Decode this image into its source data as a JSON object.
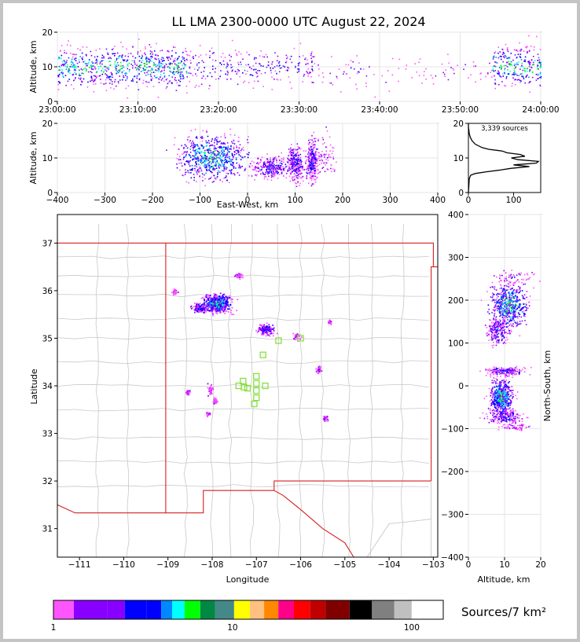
{
  "colors": {
    "frame": "#c4c4c4",
    "state_border": "#d62020",
    "county_lines": "#c8c8c8",
    "station_marker": "#88e040"
  },
  "colorbar": {
    "colors": [
      "#ff55ff",
      "#8800ff",
      "#8800ff",
      "#0000ff",
      "#0000ff",
      "#0088ff",
      "#00ffff",
      "#00ff00",
      "#008844",
      "#448888",
      "#ffff00",
      "#ffc080",
      "#ff8800",
      "#ff0088",
      "#ff0000",
      "#c00000",
      "#800000",
      "#000000",
      "#808080",
      "#c0c0c0",
      "#ffffff"
    ],
    "tick_labels": [
      "1",
      "10",
      "100"
    ],
    "label": "Sources/7 km²"
  },
  "chart_data": [
    {
      "type": "scatter",
      "panel": "altitude-vs-time",
      "title": "LL LMA 2300-0000 UTC August 22, 2024",
      "xlabel": "",
      "ylabel": "Altitude, km",
      "x_ticks": [
        "23:00:00",
        "23:10:00",
        "23:20:00",
        "23:30:00",
        "23:40:00",
        "23:50:00",
        "24:00:00"
      ],
      "xlim": [
        0,
        60
      ],
      "ylim": [
        0,
        20
      ],
      "y_ticks": [
        0,
        10,
        20
      ],
      "grid": true,
      "clusters": [
        {
          "t_start": 0,
          "t_end": 16,
          "alt_center": 10,
          "alt_spread": 3,
          "intensity": "high"
        },
        {
          "t_start": 16,
          "t_end": 25,
          "alt_center": 10,
          "alt_spread": 3,
          "intensity": "medium"
        },
        {
          "t_start": 25,
          "t_end": 32,
          "alt_center": 10,
          "alt_spread": 2.5,
          "intensity": "medium"
        },
        {
          "t_start": 32,
          "t_end": 44,
          "alt_center": 9,
          "alt_spread": 2.5,
          "intensity": "low"
        },
        {
          "t_start": 44,
          "t_end": 54,
          "alt_center": 9,
          "alt_spread": 2,
          "intensity": "low"
        },
        {
          "t_start": 54,
          "t_end": 60,
          "alt_center": 10,
          "alt_spread": 3,
          "intensity": "high"
        }
      ]
    },
    {
      "type": "scatter",
      "panel": "altitude-vs-east-west",
      "xlabel": "East-West, km",
      "ylabel": "Altitude, km",
      "xlim": [
        -400,
        400
      ],
      "ylim": [
        0,
        20
      ],
      "x_ticks": [
        -400,
        -300,
        -200,
        -100,
        0,
        100,
        200,
        300,
        400
      ],
      "y_ticks": [
        0,
        10,
        20
      ],
      "grid": true,
      "clusters": [
        {
          "x_center": -75,
          "x_spread": 35,
          "alt_center": 10.5,
          "alt_spread": 3,
          "intensity": "high"
        },
        {
          "x_center": 50,
          "x_spread": 20,
          "alt_center": 7.5,
          "alt_spread": 1.5,
          "intensity": "medium"
        },
        {
          "x_center": 100,
          "x_spread": 8,
          "alt_center": 8.5,
          "alt_spread": 2.5,
          "intensity": "medium"
        },
        {
          "x_center": 135,
          "x_spread": 6,
          "alt_center": 9,
          "alt_spread": 3,
          "intensity": "medium"
        },
        {
          "x_center": 160,
          "x_spread": 10,
          "alt_center": 11,
          "alt_spread": 3,
          "intensity": "low"
        }
      ]
    },
    {
      "type": "line",
      "panel": "altitude-histogram",
      "annotation": "3,339 sources",
      "xlim": [
        0,
        160
      ],
      "ylim": [
        0,
        20
      ],
      "x_ticks": [
        0,
        100
      ],
      "y_ticks": [
        0,
        10,
        20
      ],
      "series": [
        {
          "altitude": [
            0,
            2,
            4,
            5,
            5.5,
            6,
            6.5,
            7,
            7.5,
            8,
            8.5,
            9,
            9.5,
            10,
            10.5,
            11,
            11.5,
            12,
            12.5,
            13,
            14,
            15,
            16,
            17,
            18,
            19,
            20
          ],
          "count": [
            0,
            1,
            2,
            5,
            15,
            40,
            70,
            95,
            135,
            100,
            150,
            155,
            110,
            95,
            125,
            115,
            85,
            75,
            45,
            30,
            15,
            8,
            4,
            2,
            1,
            0,
            0
          ]
        }
      ]
    },
    {
      "type": "scatter",
      "panel": "plan-view-map",
      "xlabel": "Longitude",
      "ylabel": "Latitude",
      "xlim": [
        -111.5,
        -102.9
      ],
      "ylim": [
        30.4,
        37.6
      ],
      "x_ticks": [
        -111,
        -110,
        -109,
        -108,
        -107,
        -106,
        -105,
        -104,
        -103
      ],
      "y_ticks": [
        31,
        32,
        33,
        34,
        35,
        36,
        37
      ],
      "clusters": [
        {
          "lon": -107.9,
          "lat": 35.75,
          "lon_spread": 0.25,
          "lat_spread": 0.15,
          "intensity": "high"
        },
        {
          "lon": -108.3,
          "lat": 35.65,
          "lon_spread": 0.15,
          "lat_spread": 0.08,
          "intensity": "medium"
        },
        {
          "lon": -107.4,
          "lat": 36.33,
          "lon_spread": 0.08,
          "lat_spread": 0.05,
          "intensity": "low"
        },
        {
          "lon": -108.85,
          "lat": 35.98,
          "lon_spread": 0.05,
          "lat_spread": 0.05,
          "intensity": "low"
        },
        {
          "lon": -106.8,
          "lat": 35.2,
          "lon_spread": 0.15,
          "lat_spread": 0.1,
          "intensity": "medium"
        },
        {
          "lon": -106.1,
          "lat": 35.05,
          "lon_spread": 0.08,
          "lat_spread": 0.06,
          "intensity": "low"
        },
        {
          "lon": -105.6,
          "lat": 34.35,
          "lon_spread": 0.05,
          "lat_spread": 0.06,
          "intensity": "low"
        },
        {
          "lon": -108.05,
          "lat": 33.9,
          "lon_spread": 0.05,
          "lat_spread": 0.12,
          "intensity": "low"
        },
        {
          "lon": -107.95,
          "lat": 33.7,
          "lon_spread": 0.04,
          "lat_spread": 0.05,
          "intensity": "low"
        },
        {
          "lon": -108.1,
          "lat": 33.42,
          "lon_spread": 0.04,
          "lat_spread": 0.04,
          "intensity": "low"
        },
        {
          "lon": -105.45,
          "lat": 33.32,
          "lon_spread": 0.04,
          "lat_spread": 0.05,
          "intensity": "low"
        },
        {
          "lon": -108.55,
          "lat": 33.88,
          "lon_spread": 0.04,
          "lat_spread": 0.04,
          "intensity": "low"
        },
        {
          "lon": -105.35,
          "lat": 35.35,
          "lon_spread": 0.04,
          "lat_spread": 0.03,
          "intensity": "low"
        }
      ],
      "stations": [
        {
          "lon": -106.5,
          "lat": 34.95
        },
        {
          "lon": -106.0,
          "lat": 35.0
        },
        {
          "lon": -106.85,
          "lat": 34.65
        },
        {
          "lon": -107.0,
          "lat": 34.2
        },
        {
          "lon": -107.3,
          "lat": 34.1
        },
        {
          "lon": -107.4,
          "lat": 34.0
        },
        {
          "lon": -107.2,
          "lat": 33.95
        },
        {
          "lon": -107.0,
          "lat": 34.05
        },
        {
          "lon": -106.8,
          "lat": 34.0
        },
        {
          "lon": -107.0,
          "lat": 33.9
        },
        {
          "lon": -107.0,
          "lat": 33.75
        },
        {
          "lon": -107.05,
          "lat": 33.62
        },
        {
          "lon": -107.28,
          "lat": 33.97
        }
      ],
      "state_border": [
        [
          -111.5,
          37.0
        ],
        [
          -103.0,
          37.0
        ],
        [
          -103.0,
          36.5
        ],
        [
          -102.9,
          36.5
        ],
        [
          -102.9,
          36.5
        ],
        [
          -103.05,
          36.5
        ],
        [
          -103.05,
          32.0
        ],
        [
          -106.6,
          32.0
        ],
        [
          -106.6,
          31.8
        ],
        [
          -108.2,
          31.8
        ],
        [
          -108.2,
          31.33
        ],
        [
          -109.05,
          31.33
        ],
        [
          -109.05,
          37.0
        ]
      ],
      "rio_grande": [
        [
          -106.6,
          31.8
        ],
        [
          -106.4,
          31.7
        ],
        [
          -106.0,
          31.4
        ],
        [
          -105.5,
          31.0
        ],
        [
          -105.0,
          30.7
        ],
        [
          -104.8,
          30.4
        ]
      ],
      "mexico_border": [
        [
          -111.5,
          31.5
        ],
        [
          -111.1,
          31.33
        ],
        [
          -109.05,
          31.33
        ]
      ]
    },
    {
      "type": "scatter",
      "panel": "north-south-vs-altitude",
      "xlabel": "Altitude, km",
      "ylabel": "North-South, km",
      "xlim": [
        0,
        20
      ],
      "ylim": [
        -400,
        400
      ],
      "x_ticks": [
        0,
        10,
        20
      ],
      "y_ticks": [
        -400,
        -300,
        -200,
        -100,
        0,
        100,
        200,
        300,
        400
      ],
      "grid": true,
      "clusters": [
        {
          "ns_center": 190,
          "ns_spread": 25,
          "alt_center": 11,
          "alt_spread": 2.5,
          "intensity": "high"
        },
        {
          "ns_center": 255,
          "ns_spread": 8,
          "alt_center": 13,
          "alt_spread": 3,
          "intensity": "low"
        },
        {
          "ns_center": 130,
          "ns_spread": 15,
          "alt_center": 8,
          "alt_spread": 1.5,
          "intensity": "medium"
        },
        {
          "ns_center": 35,
          "ns_spread": 5,
          "alt_center": 10,
          "alt_spread": 2.5,
          "intensity": "medium"
        },
        {
          "ns_center": -25,
          "ns_spread": 20,
          "alt_center": 9,
          "alt_spread": 1.5,
          "intensity": "high"
        },
        {
          "ns_center": -70,
          "ns_spread": 8,
          "alt_center": 10,
          "alt_spread": 2.5,
          "intensity": "medium"
        },
        {
          "ns_center": -95,
          "ns_spread": 4,
          "alt_center": 13,
          "alt_spread": 2,
          "intensity": "low"
        }
      ]
    }
  ]
}
